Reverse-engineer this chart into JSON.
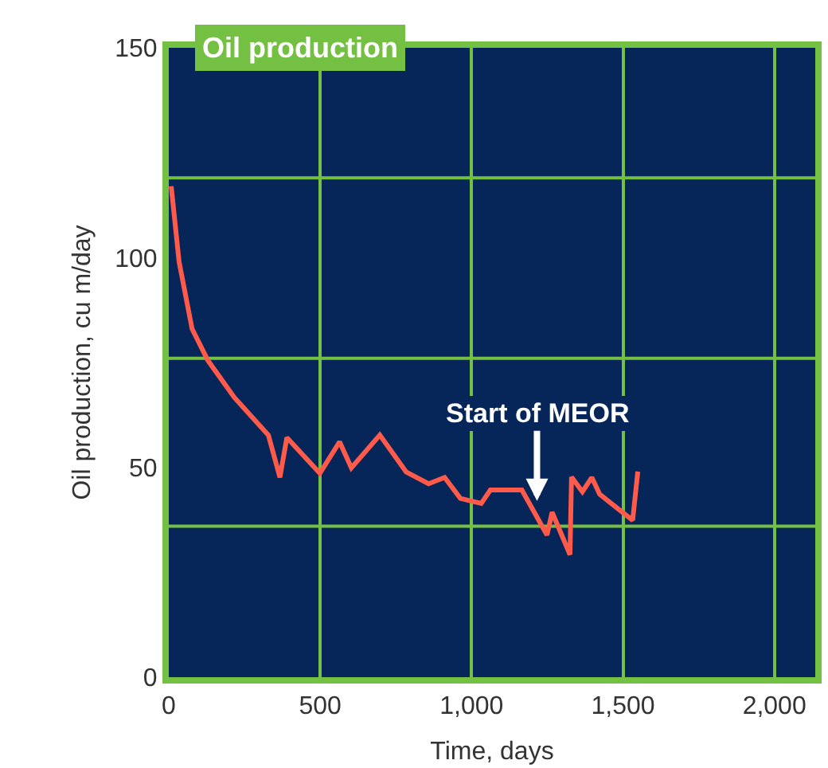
{
  "chart_data": {
    "type": "line",
    "title": "Oil production",
    "xlabel": "Time, days",
    "ylabel": "Oil production, cu m/day",
    "xlim": [
      0,
      2135
    ],
    "xticks": [
      0,
      {
        "value": 500,
        "label": "500"
      },
      {
        "value": 1000,
        "label": "1,000"
      },
      {
        "value": 1500,
        "label": "1,500"
      },
      {
        "value": 2000,
        "label": "2,000"
      }
    ],
    "ylim": [
      0,
      150
    ],
    "yticks": [
      0,
      50,
      100,
      150
    ],
    "grid": "x",
    "marker": "none",
    "line_style": "solid",
    "series": [
      {
        "color": "#ff5a4a",
        "x": [
          8,
          34,
          77,
          129,
          216,
          329,
          367,
          390,
          499,
          564,
          603,
          697,
          784,
          858,
          911,
          963,
          1032,
          1062,
          1166,
          1249,
          1266,
          1325,
          1330,
          1366,
          1397,
          1423,
          1532,
          1549
        ],
        "values": [
          117,
          99,
          83,
          75.5,
          66.7,
          57.7,
          47.6,
          57.1,
          48.6,
          56.1,
          49.9,
          57.7,
          48.9,
          46.1,
          47.6,
          42.6,
          41.4,
          44.6,
          44.6,
          33.9,
          39.3,
          29.2,
          47.7,
          44.2,
          47.6,
          43.6,
          37.4,
          49
        ]
      }
    ],
    "ref_lines": [
      {
        "axis": "y",
        "value": 36,
        "color": "#74c043"
      },
      {
        "axis": "y",
        "value": 76,
        "color": "#74c043"
      },
      {
        "axis": "y",
        "value": 119,
        "color": "#74c043"
      }
    ],
    "annotations": [
      {
        "text": "Start of MEOR",
        "x": 1216,
        "y": 42
      }
    ]
  }
}
